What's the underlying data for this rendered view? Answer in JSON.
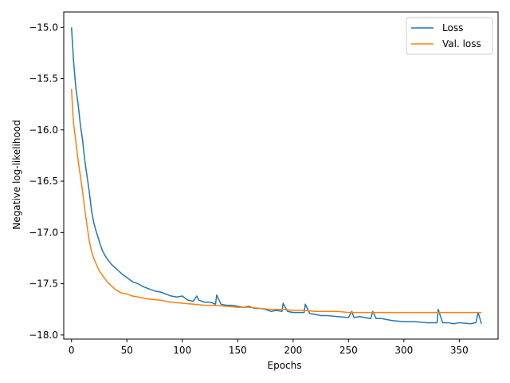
{
  "chart_data": {
    "type": "line",
    "title": "",
    "xlabel": "Epochs",
    "ylabel": "Negative log-likelihood",
    "xlim": [
      -7,
      385
    ],
    "ylim": [
      -18.04,
      -14.85
    ],
    "xticks": [
      0,
      50,
      100,
      150,
      200,
      250,
      300,
      350
    ],
    "yticks": [
      -15.0,
      -15.5,
      -16.0,
      -16.5,
      -17.0,
      -17.5,
      -18.0
    ],
    "xtick_labels": [
      "0",
      "50",
      "100",
      "150",
      "200",
      "250",
      "300",
      "350"
    ],
    "ytick_labels": [
      "−15.0",
      "−15.5",
      "−16.0",
      "−16.5",
      "−17.0",
      "−17.5",
      "−18.0"
    ],
    "grid": false,
    "legend_position": "upper right",
    "series": [
      {
        "name": "Loss",
        "color": "#1f77b4",
        "x": [
          0,
          2,
          4,
          6,
          8,
          10,
          12,
          14,
          16,
          18,
          20,
          22,
          24,
          26,
          28,
          30,
          33,
          36,
          40,
          45,
          50,
          55,
          60,
          65,
          70,
          75,
          80,
          85,
          90,
          95,
          100,
          105,
          110,
          113,
          115,
          120,
          125,
          130,
          131,
          135,
          140,
          145,
          150,
          155,
          160,
          165,
          170,
          175,
          180,
          185,
          190,
          191,
          195,
          200,
          205,
          210,
          211,
          215,
          220,
          225,
          230,
          240,
          250,
          253,
          255,
          260,
          265,
          270,
          272,
          275,
          280,
          285,
          290,
          300,
          310,
          320,
          330,
          331,
          335,
          340,
          345,
          350,
          360,
          365,
          367,
          370
        ],
        "y": [
          -15.0,
          -15.35,
          -15.6,
          -15.75,
          -15.95,
          -16.1,
          -16.3,
          -16.45,
          -16.6,
          -16.78,
          -16.9,
          -16.98,
          -17.05,
          -17.12,
          -17.18,
          -17.22,
          -17.27,
          -17.31,
          -17.35,
          -17.4,
          -17.44,
          -17.48,
          -17.5,
          -17.53,
          -17.55,
          -17.57,
          -17.58,
          -17.6,
          -17.62,
          -17.63,
          -17.62,
          -17.66,
          -17.67,
          -17.62,
          -17.66,
          -17.68,
          -17.68,
          -17.7,
          -17.61,
          -17.7,
          -17.71,
          -17.71,
          -17.72,
          -17.73,
          -17.72,
          -17.74,
          -17.74,
          -17.75,
          -17.77,
          -17.76,
          -17.77,
          -17.69,
          -17.77,
          -17.78,
          -17.78,
          -17.78,
          -17.7,
          -17.79,
          -17.8,
          -17.81,
          -17.81,
          -17.82,
          -17.83,
          -17.77,
          -17.83,
          -17.82,
          -17.83,
          -17.84,
          -17.77,
          -17.84,
          -17.84,
          -17.85,
          -17.86,
          -17.87,
          -17.87,
          -17.88,
          -17.88,
          -17.75,
          -17.88,
          -17.88,
          -17.89,
          -17.88,
          -17.89,
          -17.88,
          -17.78,
          -17.89
        ]
      },
      {
        "name": "Val. loss",
        "color": "#ff7f0e",
        "x": [
          0,
          1,
          2,
          4,
          6,
          8,
          10,
          12,
          14,
          16,
          18,
          20,
          22,
          24,
          26,
          28,
          30,
          33,
          36,
          40,
          45,
          50,
          55,
          60,
          70,
          80,
          90,
          100,
          110,
          120,
          130,
          140,
          150,
          160,
          170,
          180,
          190,
          200,
          210,
          220,
          230,
          240,
          250,
          260,
          270,
          280,
          290,
          300,
          310,
          320,
          330,
          340,
          350,
          360,
          370
        ],
        "y": [
          -15.6,
          -15.8,
          -15.95,
          -16.12,
          -16.3,
          -16.45,
          -16.6,
          -16.78,
          -16.93,
          -17.08,
          -17.18,
          -17.25,
          -17.3,
          -17.35,
          -17.39,
          -17.42,
          -17.45,
          -17.49,
          -17.52,
          -17.56,
          -17.59,
          -17.6,
          -17.62,
          -17.63,
          -17.65,
          -17.66,
          -17.68,
          -17.69,
          -17.7,
          -17.71,
          -17.71,
          -17.72,
          -17.73,
          -17.73,
          -17.74,
          -17.75,
          -17.75,
          -17.76,
          -17.76,
          -17.77,
          -17.77,
          -17.77,
          -17.78,
          -17.78,
          -17.78,
          -17.78,
          -17.78,
          -17.78,
          -17.78,
          -17.78,
          -17.78,
          -17.78,
          -17.78,
          -17.78,
          -17.78
        ]
      }
    ]
  }
}
